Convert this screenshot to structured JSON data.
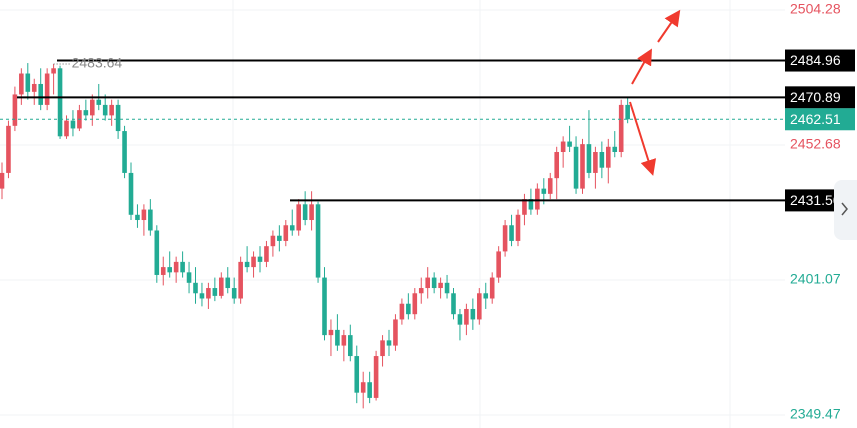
{
  "chart_data": {
    "type": "candlestick",
    "up_color": "#e5535f",
    "down_color": "#22ab94",
    "ylim": [
      2344.5,
      2508.1
    ],
    "yticks": [
      2504.28,
      2452.68,
      2401.07,
      2349.47
    ],
    "ytick_colors": [
      "#e5535f",
      "#e5535f",
      "#22ab94",
      "#22ab94"
    ],
    "grid": true,
    "levels": [
      2484.96,
      2470.89,
      {
        "value": 2431.5,
        "label": "2431.50"
      }
    ],
    "last_price": 2462.51,
    "high_marker": 2483.64,
    "open": [
      2436,
      2442,
      2460,
      2472,
      2480,
      2473,
      2476,
      2468,
      2480,
      2482,
      2456,
      2462,
      2459,
      2466,
      2464,
      2470,
      2468,
      2464,
      2468,
      2458,
      2442,
      2426,
      2424,
      2428,
      2420,
      2403,
      2406,
      2404,
      2408,
      2404,
      2400,
      2396,
      2394,
      2398,
      2395,
      2402,
      2398,
      2394,
      2408,
      2406,
      2410,
      2408,
      2414,
      2418,
      2416,
      2422,
      2420,
      2430,
      2424,
      2430,
      2402,
      2380,
      2382,
      2376,
      2380,
      2372,
      2358,
      2362,
      2356,
      2372,
      2378,
      2376,
      2386,
      2392,
      2388,
      2396,
      2398,
      2402,
      2398,
      2400,
      2396,
      2388,
      2384,
      2390,
      2386,
      2396,
      2394,
      2402,
      2412,
      2422,
      2416,
      2426,
      2432,
      2428,
      2436,
      2434,
      2440,
      2450,
      2454,
      2452,
      2436,
      2453,
      2442,
      2450,
      2444,
      2452,
      2450,
      2468
    ],
    "high": [
      2446,
      2462,
      2475,
      2482,
      2484,
      2478,
      2482,
      2482,
      2483.64,
      2483,
      2464,
      2466,
      2468,
      2470,
      2472,
      2476,
      2472,
      2470,
      2470,
      2460,
      2446,
      2430,
      2430,
      2432,
      2422,
      2410,
      2412,
      2410,
      2412,
      2408,
      2406,
      2400,
      2400,
      2402,
      2404,
      2406,
      2402,
      2410,
      2414,
      2412,
      2414,
      2416,
      2420,
      2422,
      2424,
      2428,
      2432,
      2435,
      2435,
      2431,
      2406,
      2386,
      2388,
      2382,
      2384,
      2376,
      2366,
      2366,
      2374,
      2380,
      2382,
      2388,
      2394,
      2396,
      2398,
      2402,
      2406,
      2404,
      2402,
      2403,
      2398,
      2390,
      2392,
      2394,
      2398,
      2400,
      2404,
      2414,
      2424,
      2426,
      2428,
      2434,
      2436,
      2438,
      2440,
      2442,
      2452,
      2456,
      2460,
      2456,
      2455,
      2466,
      2452,
      2454,
      2455,
      2458,
      2470,
      2470.89
    ],
    "low": [
      2432,
      2440,
      2458,
      2468,
      2470,
      2468,
      2466,
      2466,
      2472,
      2455,
      2455,
      2456,
      2458,
      2462,
      2460,
      2466,
      2462,
      2460,
      2455,
      2440,
      2424,
      2421,
      2418,
      2418,
      2400,
      2399,
      2402,
      2400,
      2402,
      2396,
      2392,
      2391,
      2390,
      2393,
      2394,
      2396,
      2392,
      2392,
      2404,
      2402,
      2404,
      2406,
      2410,
      2412,
      2414,
      2418,
      2418,
      2422,
      2420,
      2400,
      2378,
      2372,
      2374,
      2370,
      2370,
      2354,
      2352,
      2354,
      2355,
      2368,
      2372,
      2374,
      2384,
      2386,
      2386,
      2392,
      2394,
      2396,
      2394,
      2394,
      2386,
      2378,
      2380,
      2382,
      2384,
      2390,
      2392,
      2400,
      2410,
      2414,
      2414,
      2422,
      2426,
      2426,
      2430,
      2432,
      2432,
      2444,
      2450,
      2434,
      2434,
      2440,
      2436,
      2440,
      2438,
      2448,
      2448,
      2461
    ],
    "close": [
      2442,
      2460,
      2472,
      2480,
      2473,
      2476,
      2468,
      2480,
      2482,
      2456,
      2462,
      2459,
      2466,
      2464,
      2470,
      2468,
      2464,
      2468,
      2458,
      2442,
      2426,
      2424,
      2428,
      2420,
      2403,
      2406,
      2404,
      2408,
      2404,
      2400,
      2396,
      2394,
      2398,
      2395,
      2402,
      2398,
      2394,
      2408,
      2406,
      2410,
      2408,
      2414,
      2418,
      2416,
      2422,
      2420,
      2430,
      2424,
      2430,
      2402,
      2380,
      2382,
      2376,
      2380,
      2372,
      2358,
      2362,
      2356,
      2372,
      2378,
      2376,
      2386,
      2392,
      2388,
      2396,
      2398,
      2402,
      2398,
      2400,
      2396,
      2388,
      2384,
      2390,
      2386,
      2396,
      2394,
      2402,
      2412,
      2422,
      2416,
      2426,
      2432,
      2428,
      2436,
      2434,
      2440,
      2450,
      2454,
      2452,
      2436,
      2453,
      2442,
      2450,
      2444,
      2452,
      2450,
      2468,
      2462.51
    ]
  }
}
